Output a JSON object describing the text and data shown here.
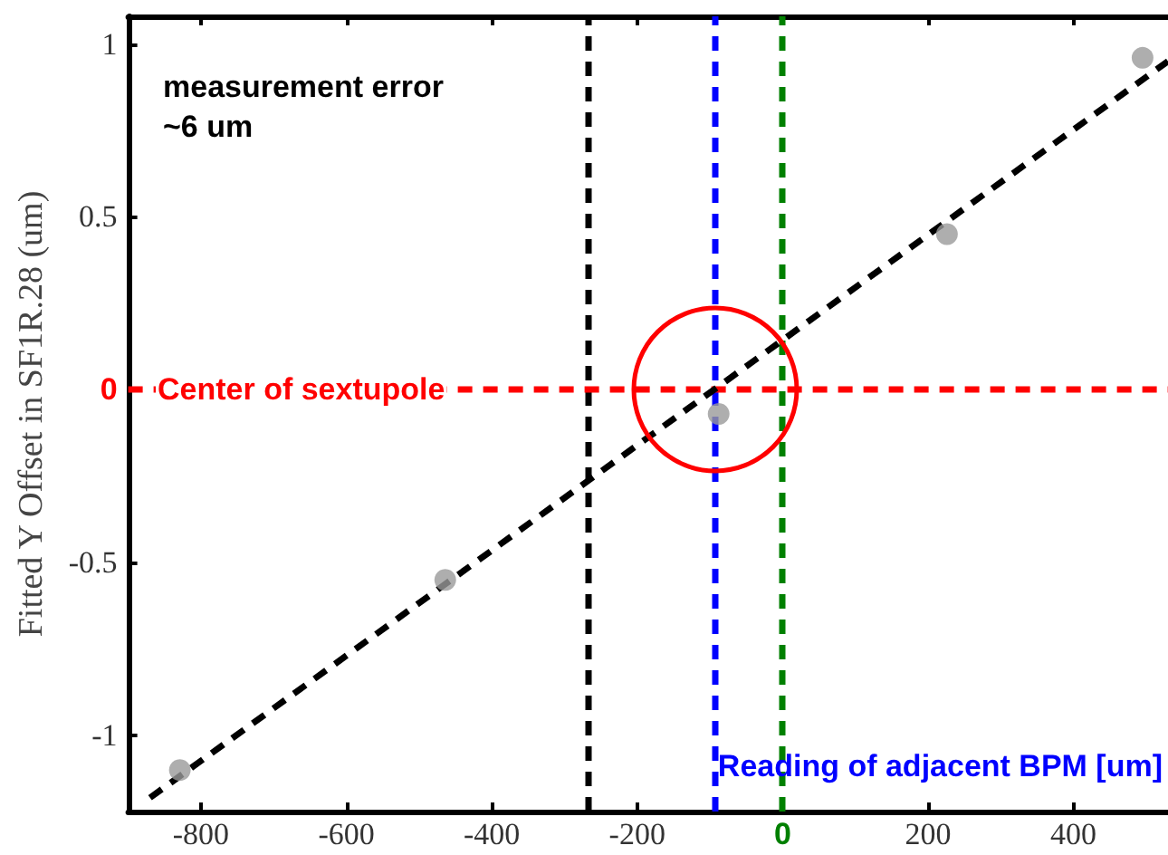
{
  "chart_data": {
    "type": "scatter",
    "ylabel": "Fitted Y Offset in SF1R.28 (um)",
    "xlabel": "Reading of adjacent BPM [um]",
    "annotations": [
      "measurement error\n~6 um"
    ],
    "series": [
      {
        "color": "#9a9a9a",
        "marker": "circle",
        "x": [
          -829,
          -464,
          -88,
          226,
          495
        ],
        "values": [
          -1.1,
          -0.55,
          -0.07,
          0.45,
          0.96
        ]
      },
      {
        "type": "line",
        "color": "#000000",
        "marker": "none",
        "line_style": "dashed",
        "x": [
          -870,
          530
        ],
        "values": [
          -1.18,
          0.95
        ]
      }
    ],
    "xlim": [
      -900,
      530
    ],
    "xticks": [
      -800,
      -600,
      -400,
      -200,
      0,
      200,
      400
    ],
    "ylim": [
      -1.22,
      1.08
    ],
    "yticks": [
      -1,
      -0.5,
      0,
      0.5,
      1
    ],
    "ref_lines": [
      {
        "axis": "x",
        "value": -267,
        "color": "#000000",
        "line_style": "dashed"
      },
      {
        "axis": "x",
        "value": -92,
        "color": "#0000ff",
        "line_style": "dashed"
      },
      {
        "axis": "x",
        "value": 0,
        "color": "#008000",
        "line_style": "dashed"
      },
      {
        "axis": "y",
        "value": 0,
        "label": "Center of sextupole",
        "color": "#ff0000",
        "line_style": "dashed"
      }
    ],
    "grid": false
  }
}
